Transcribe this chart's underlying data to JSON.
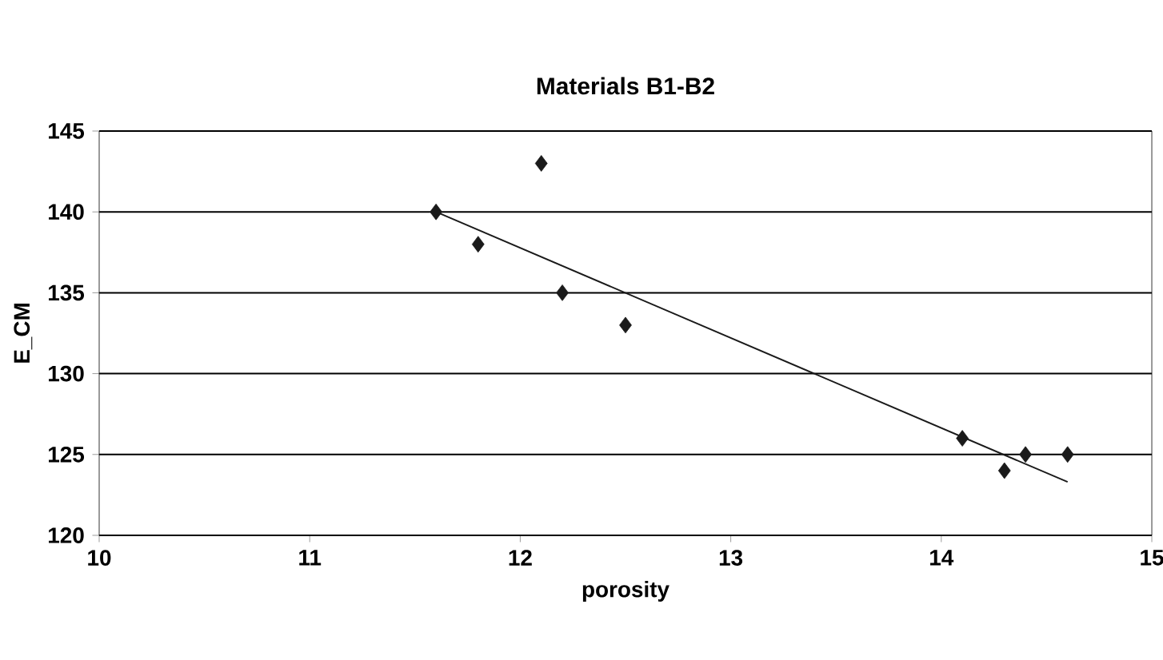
{
  "chart_data": {
    "type": "scatter",
    "title": "Materials B1-B2",
    "xlabel": "porosity",
    "ylabel": "E_CM",
    "xlim": [
      10,
      15
    ],
    "xticks": [
      10,
      11,
      12,
      13,
      14,
      15
    ],
    "ylim": [
      120,
      145
    ],
    "yticks": [
      120,
      125,
      130,
      135,
      140,
      145
    ],
    "grid": "y",
    "marker": "diamond",
    "series": [
      {
        "color": "#1a1a1a",
        "x": [
          11.6,
          11.8,
          12.1,
          12.2,
          12.5,
          14.1,
          14.3,
          14.4,
          14.6
        ],
        "values": [
          140,
          138,
          143,
          135,
          133,
          126,
          124,
          125,
          125
        ]
      },
      {
        "type": "line",
        "marker": "none",
        "color": "#1a1a1a",
        "x": [
          11.6,
          14.6
        ],
        "values": [
          140,
          123.3
        ]
      }
    ]
  }
}
